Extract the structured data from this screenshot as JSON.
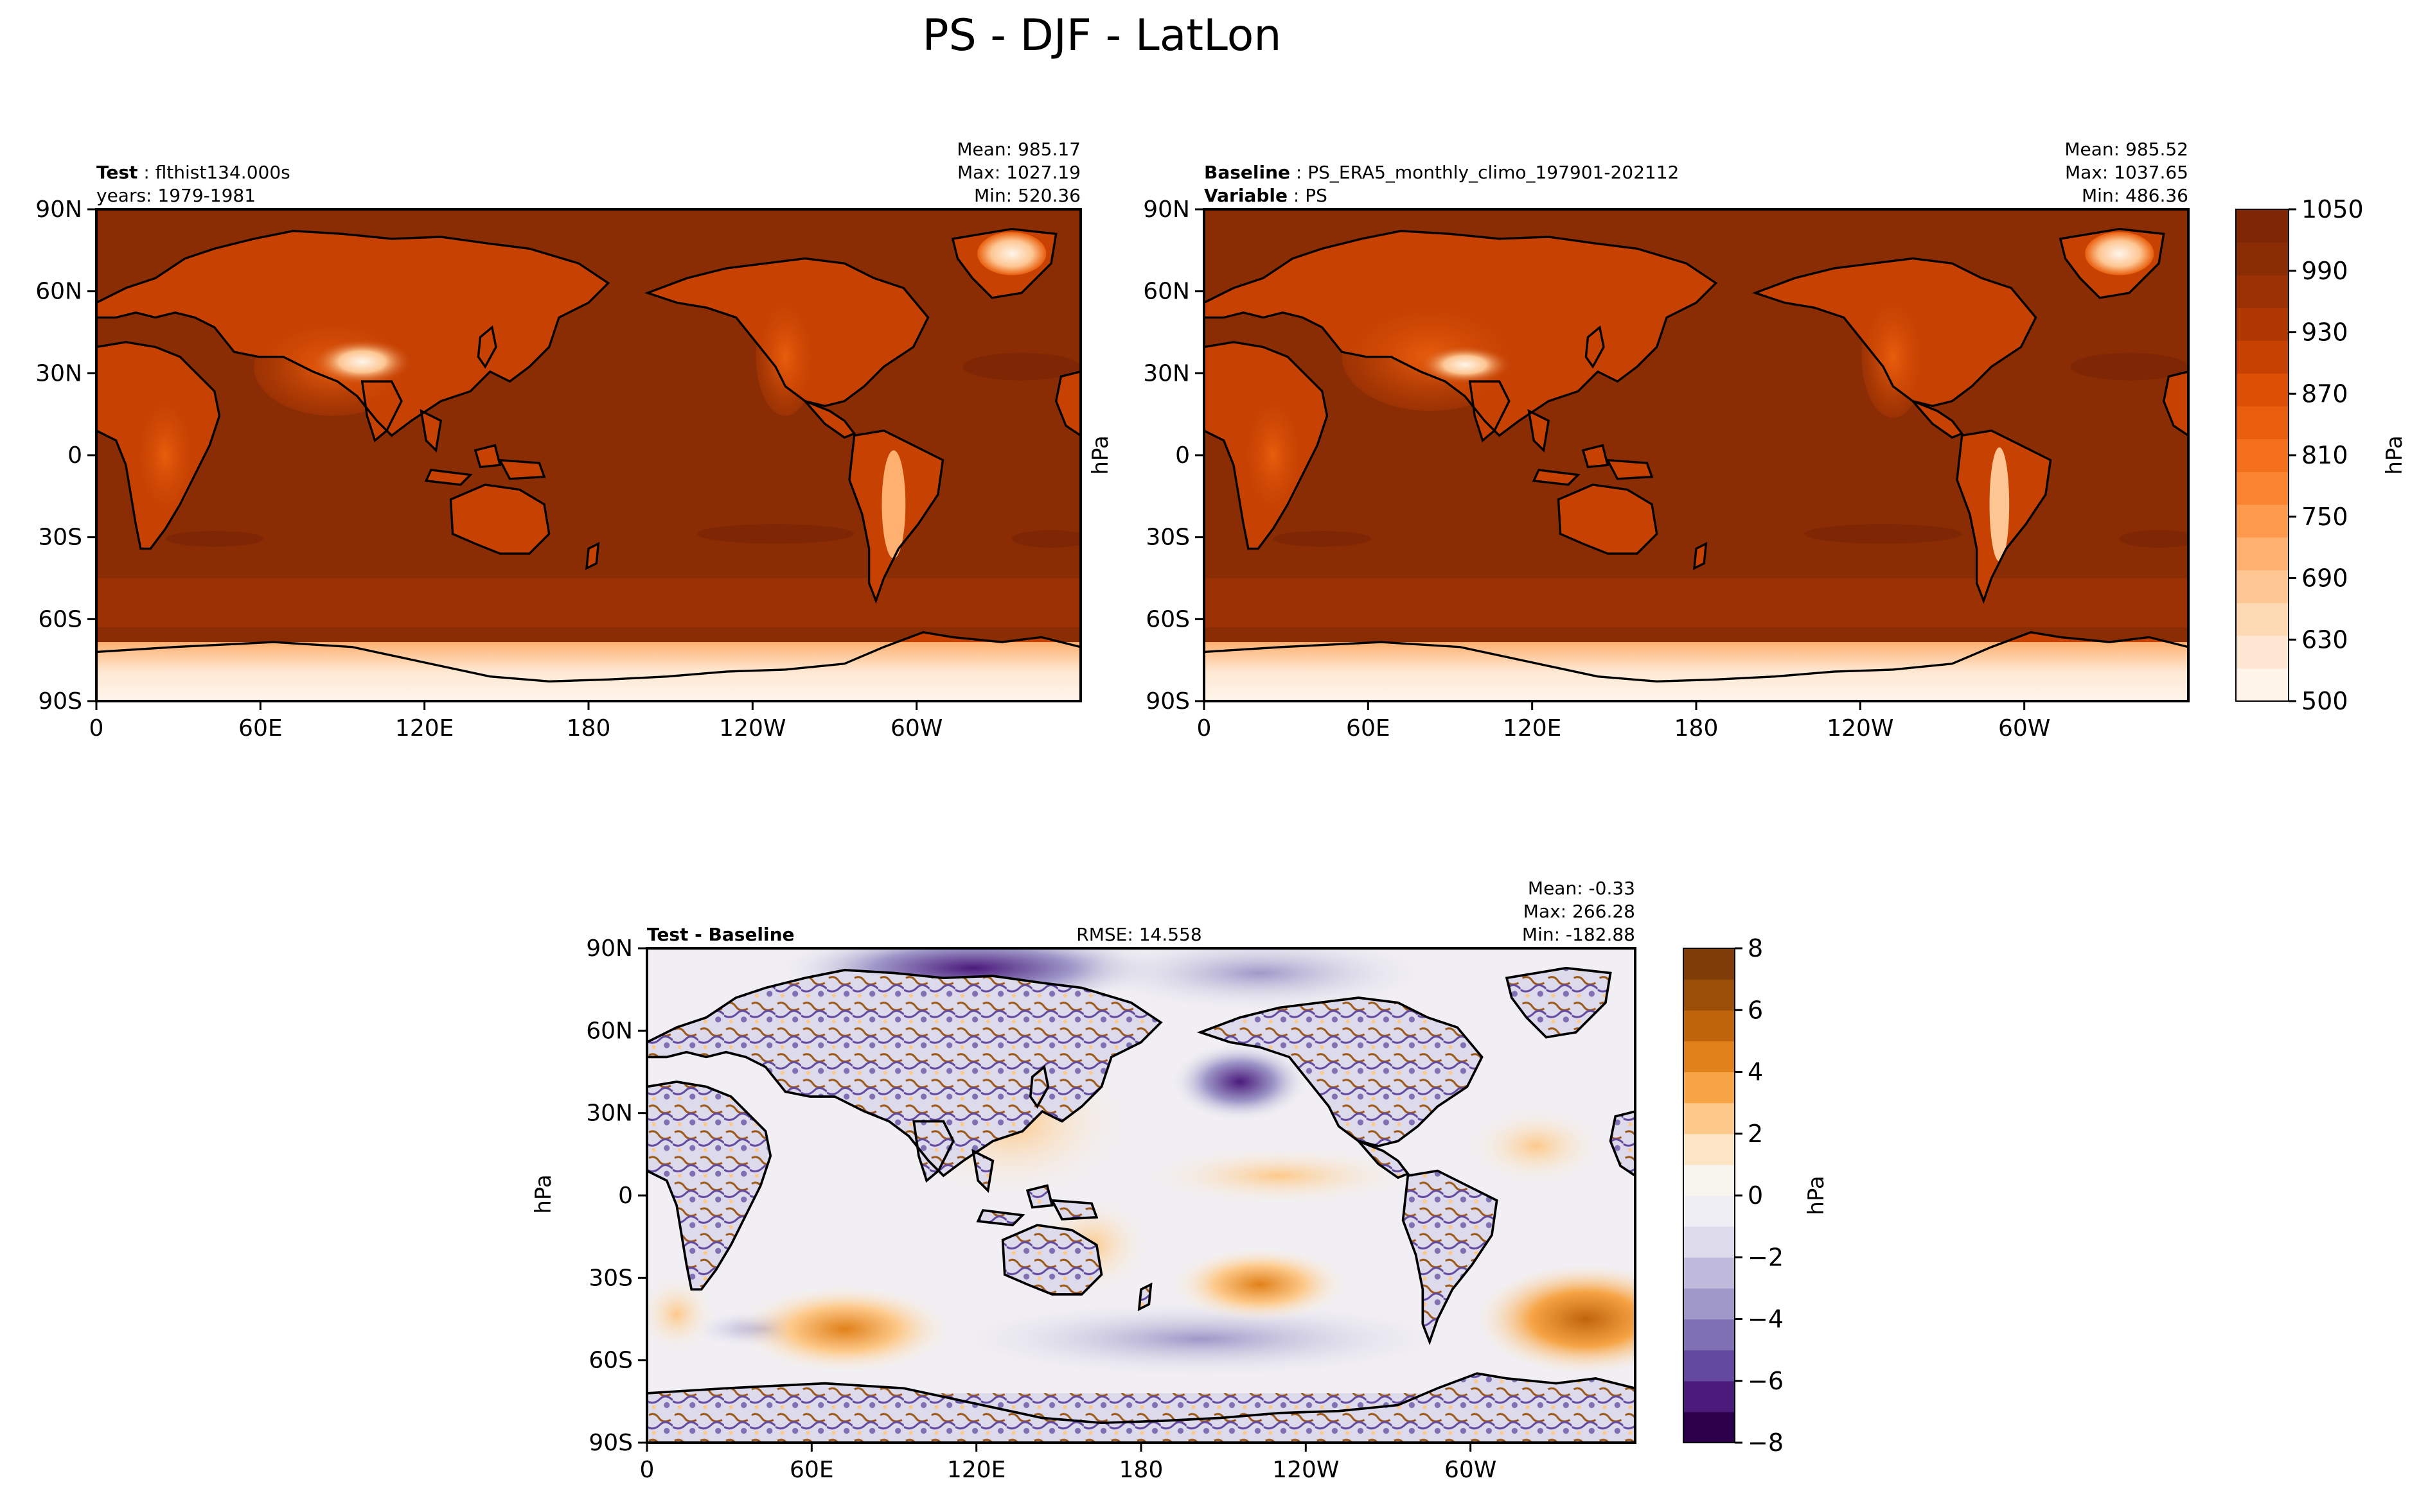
{
  "figure_title": "PS - DJF - LatLon",
  "chart_data": [
    {
      "type": "heatmap",
      "panel": "test",
      "label_bold": "Test",
      "label_value": "flthist134.000s",
      "subtitle": "years: 1979-1981",
      "stats": [
        "Mean: 985.17",
        "Max: 1027.19",
        "Min: 520.36"
      ],
      "xticks": [
        "0",
        "60E",
        "120E",
        "180",
        "120W",
        "60W"
      ],
      "yticks": [
        "90N",
        "60N",
        "30N",
        "0",
        "30S",
        "60S",
        "90S"
      ],
      "xlim": [
        0,
        360
      ],
      "ylim": [
        -90,
        90
      ],
      "ylabel": "",
      "colorbar_ref": "abs"
    },
    {
      "type": "heatmap",
      "panel": "baseline",
      "label_bold": "Baseline",
      "label_value": "PS_ERA5_monthly_climo_197901-202112",
      "label2_bold": "Variable",
      "label2_value": "PS",
      "stats": [
        "Mean: 985.52",
        "Max: 1037.65",
        "Min: 486.36"
      ],
      "xticks": [
        "0",
        "60E",
        "120E",
        "180",
        "120W",
        "60W"
      ],
      "yticks": [
        "90N",
        "60N",
        "30N",
        "0",
        "30S",
        "60S",
        "90S"
      ],
      "xlim": [
        0,
        360
      ],
      "ylim": [
        -90,
        90
      ],
      "ylabel": "hPa",
      "colorbar_ref": "abs"
    },
    {
      "type": "heatmap",
      "panel": "diff",
      "label_bold": "Test - Baseline",
      "rmse": "RMSE: 14.558",
      "stats": [
        "Mean: -0.33",
        "Max: 266.28",
        "Min: -182.88"
      ],
      "xticks": [
        "0",
        "60E",
        "120E",
        "180",
        "120W",
        "60W"
      ],
      "yticks": [
        "90N",
        "60N",
        "30N",
        "0",
        "30S",
        "60S",
        "90S"
      ],
      "xlim": [
        0,
        360
      ],
      "ylim": [
        -90,
        90
      ],
      "ylabel": "hPa",
      "colorbar_ref": "diff"
    }
  ],
  "colorbars": {
    "abs": {
      "label": "hPa",
      "ticks": [
        "1050",
        "990",
        "930",
        "870",
        "810",
        "750",
        "690",
        "630",
        "500"
      ],
      "colors": [
        "#fff5eb",
        "#fee8d3",
        "#fdd9b4",
        "#fdc692",
        "#fdb070",
        "#fd9a4e",
        "#fb8431",
        "#f4701b",
        "#e95e0d",
        "#dc4f04",
        "#c64102",
        "#b03903",
        "#9c3203",
        "#8a2c04",
        "#7f2704"
      ]
    },
    "diff": {
      "label": "hPa",
      "ticks": [
        "8",
        "6",
        "4",
        "2",
        "0",
        "−2",
        "−4",
        "−6",
        "−8"
      ],
      "colors": [
        "#2d004b",
        "#4b1b7c",
        "#634aa0",
        "#7f70b4",
        "#9e97c8",
        "#bfbadb",
        "#dcdaeb",
        "#eeeef4",
        "#f8f4ee",
        "#fde4c4",
        "#fdc98a",
        "#f6a445",
        "#e1811a",
        "#c0640b",
        "#9a4e07",
        "#7f3b08"
      ]
    },
    "map_colors": {
      "abs_ocean": "#8a2c04",
      "abs_ocean_band": "#9c3203",
      "land_outline": "#000000"
    }
  }
}
